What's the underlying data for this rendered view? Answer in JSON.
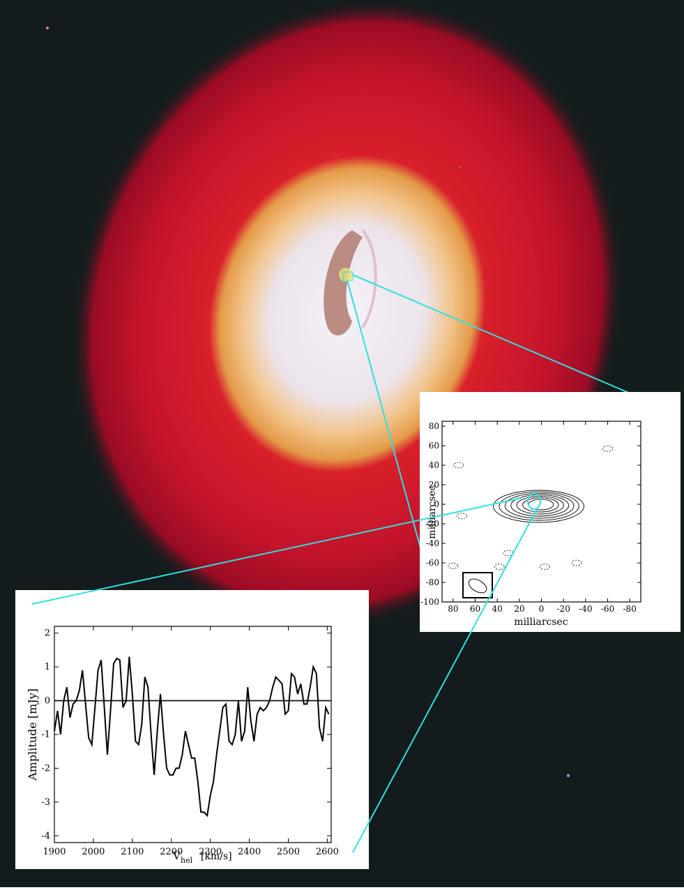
{
  "colors": {
    "background": "#121c1d",
    "halo_outer": "#c8102e",
    "halo_mid": "#e8a050",
    "core": "#f0eef4",
    "dust_lane": "#b07a70",
    "connector": "#2ee0e0"
  },
  "image": {
    "description_icon": "galaxy-image"
  },
  "chart_data": [
    {
      "type": "contour",
      "xlabel": "milliarcsec",
      "ylabel": "milliarcsec",
      "xlim": [
        90,
        -90
      ],
      "ylim": [
        -100,
        85
      ],
      "xticks": [
        80,
        60,
        40,
        20,
        0,
        -20,
        -40,
        -60,
        -80
      ],
      "yticks": [
        80,
        60,
        40,
        20,
        0,
        -20,
        -40,
        -60,
        -80,
        -100
      ],
      "contour_levels": 7,
      "source_center": [
        0,
        0
      ],
      "beam_center": [
        82,
        -85
      ]
    },
    {
      "type": "line",
      "xlabel_main": "V",
      "xlabel_sub": "hel",
      "xlabel_unit": "[km/s]",
      "ylabel": "Amplitude [mJy]",
      "xlim": [
        1900,
        2610
      ],
      "ylim": [
        -4.2,
        2.2
      ],
      "xticks": [
        1900,
        2000,
        2100,
        2200,
        2300,
        2400,
        2500,
        2600
      ],
      "yticks": [
        2,
        1,
        0,
        -1,
        -2,
        -3,
        -4
      ],
      "series": [
        {
          "x": [
            1900,
            1908,
            1916,
            1924,
            1932,
            1940,
            1948,
            1956,
            1964,
            1972,
            1980,
            1988,
            1996,
            2004,
            2012,
            2020,
            2028,
            2036,
            2044,
            2052,
            2060,
            2068,
            2076,
            2084,
            2092,
            2100,
            2108,
            2116,
            2124,
            2132,
            2140,
            2148,
            2156,
            2164,
            2172,
            2180,
            2188,
            2196,
            2204,
            2212,
            2220,
            2228,
            2236,
            2244,
            2252,
            2260,
            2268,
            2276,
            2284,
            2292,
            2300,
            2308,
            2316,
            2324,
            2332,
            2340,
            2348,
            2356,
            2364,
            2372,
            2380,
            2388,
            2396,
            2404,
            2412,
            2420,
            2428,
            2436,
            2444,
            2452,
            2460,
            2468,
            2476,
            2484,
            2492,
            2500,
            2508,
            2516,
            2524,
            2532,
            2540,
            2548,
            2556,
            2564,
            2572,
            2580,
            2588,
            2596,
            2604
          ],
          "values": [
            -0.9,
            -0.3,
            -1.0,
            0.0,
            0.4,
            -0.5,
            -0.1,
            0.0,
            0.3,
            0.9,
            -0.1,
            -1.1,
            -1.3,
            -0.2,
            0.9,
            1.2,
            -0.2,
            -1.6,
            -0.3,
            1.1,
            1.25,
            1.2,
            -0.2,
            0.0,
            1.3,
            0.2,
            -1.2,
            -1.3,
            -0.7,
            0.7,
            0.4,
            -1.0,
            -2.2,
            -0.9,
            0.2,
            -1.0,
            -2.0,
            -2.2,
            -2.2,
            -2.0,
            -2.0,
            -1.6,
            -0.9,
            -1.3,
            -1.7,
            -1.7,
            -2.4,
            -3.3,
            -3.3,
            -3.4,
            -2.8,
            -2.4,
            -1.6,
            -0.9,
            -0.2,
            -0.1,
            -1.2,
            -1.3,
            -1.0,
            0.0,
            -1.2,
            -0.9,
            0.4,
            -0.6,
            -1.2,
            -0.4,
            -0.2,
            -0.3,
            -0.2,
            0.0,
            0.4,
            0.7,
            0.6,
            0.5,
            -0.4,
            -0.3,
            0.8,
            0.7,
            0.2,
            0.5,
            -0.1,
            -0.1,
            0.4,
            1.0,
            0.8,
            -0.8,
            -1.2,
            -0.2,
            -0.4
          ]
        }
      ]
    }
  ]
}
